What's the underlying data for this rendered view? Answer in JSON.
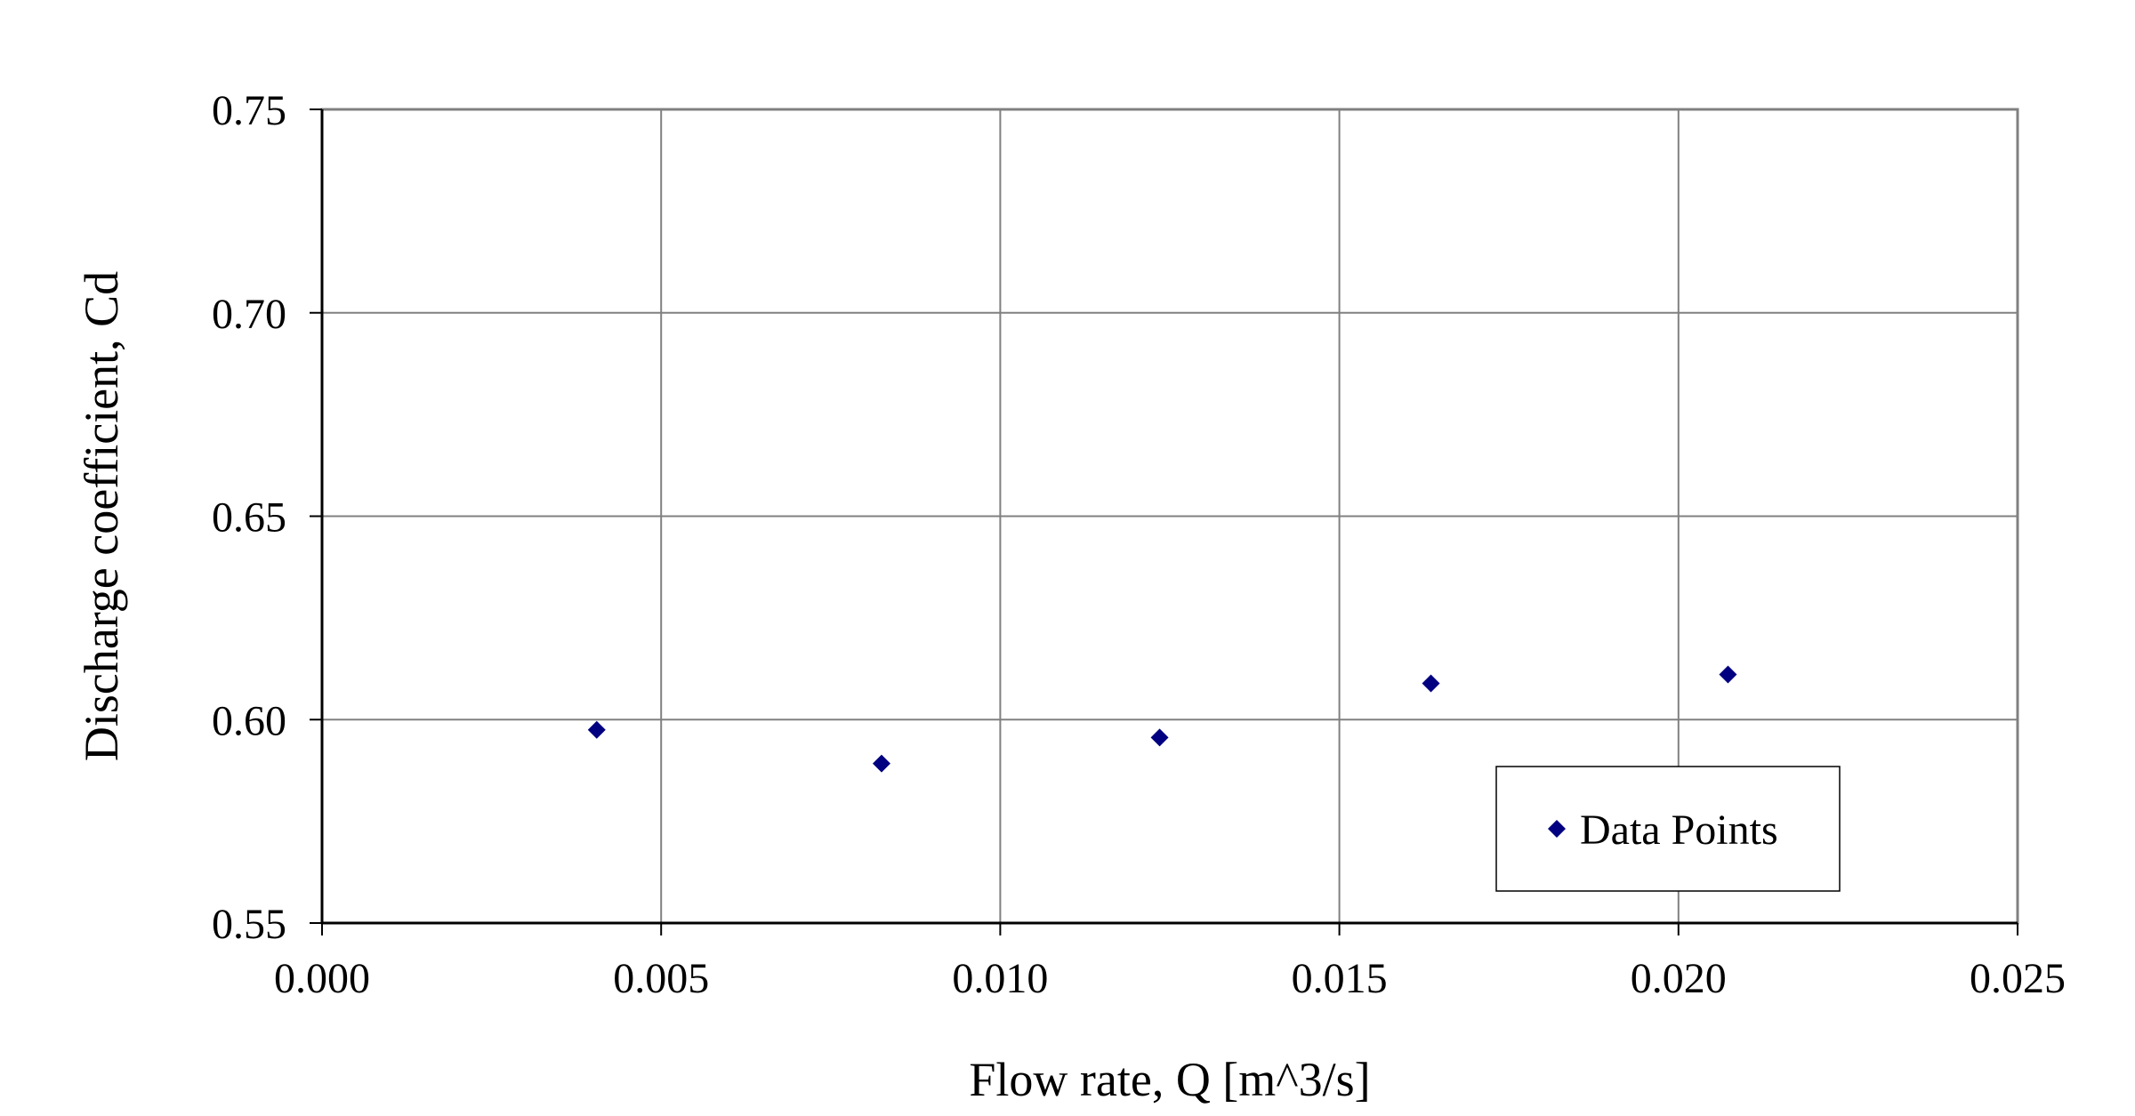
{
  "chart_data": {
    "type": "scatter",
    "title": "",
    "xlabel": "Flow rate, Q [m^3/s]",
    "ylabel": "Discharge coefficient, Cd",
    "xlim": [
      0.0,
      0.025
    ],
    "ylim": [
      0.55,
      0.75
    ],
    "x_ticks": [
      "0.000",
      "0.005",
      "0.010",
      "0.015",
      "0.020",
      "0.025"
    ],
    "y_ticks": [
      "0.55",
      "0.60",
      "0.65",
      "0.70",
      "0.75"
    ],
    "grid": true,
    "legend_position": "bottom-right",
    "marker": "diamond",
    "colors": {
      "series": "#000080",
      "grid": "#808080",
      "axis": "#808080"
    },
    "series": [
      {
        "name": "Data Points",
        "x": [
          0.00405,
          0.00825,
          0.01235,
          0.01635,
          0.02073
        ],
        "y": [
          0.5975,
          0.5892,
          0.5956,
          0.6089,
          0.6111
        ]
      }
    ]
  }
}
